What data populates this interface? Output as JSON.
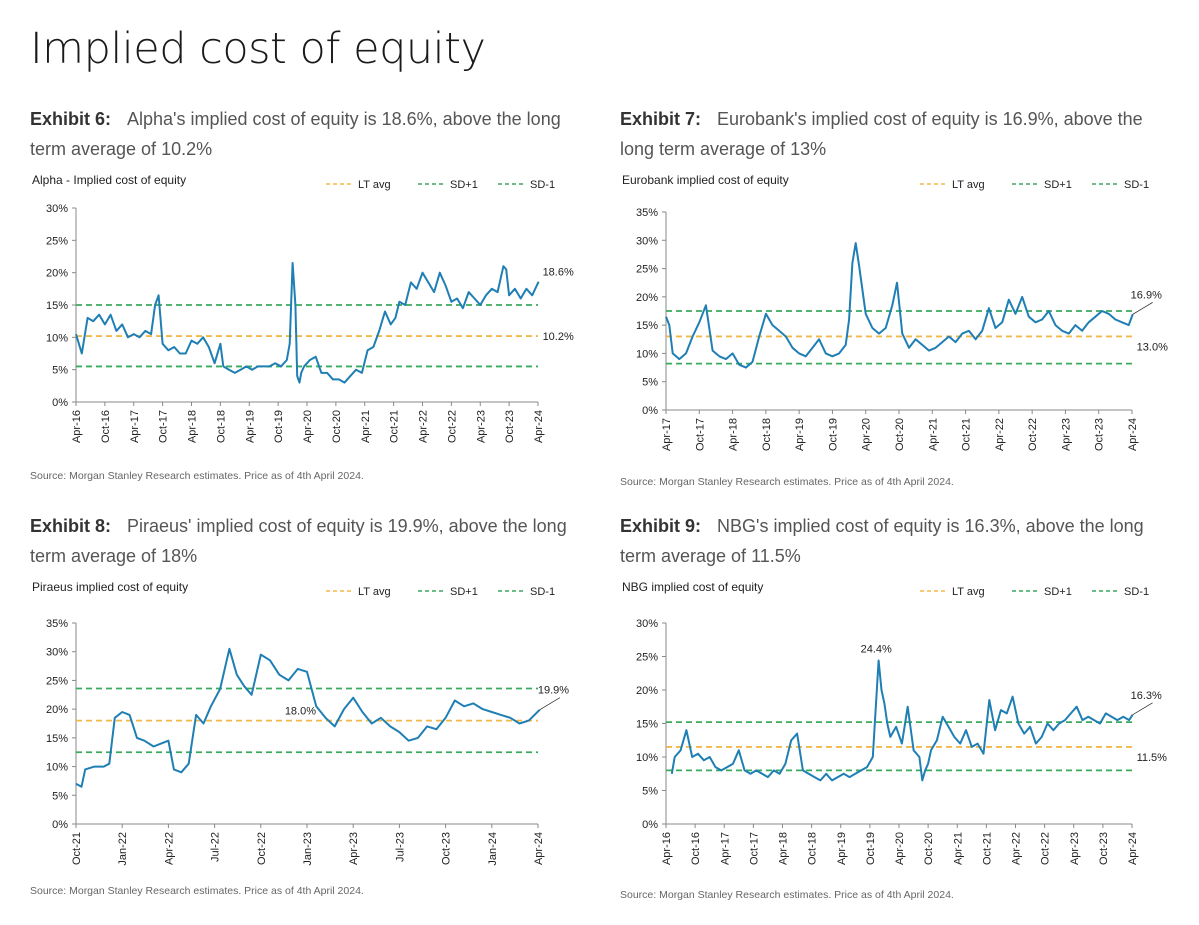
{
  "page": {
    "title": "Implied cost of equity"
  },
  "colors": {
    "line": "#1f7fb4",
    "lt_avg": "#f2b84b",
    "sd": "#3aaa5c",
    "axis": "#888888",
    "text": "#222222"
  },
  "panels": [
    {
      "exhibit": "Exhibit 6:",
      "heading": "Alpha's implied cost of equity is 18.6%, above the long term average of 10.2%",
      "source": "Source: Morgan Stanley Research estimates. Price as of 4th April 2024.",
      "chart_title": "Alpha - Implied cost of equity",
      "legend": [
        "LT avg",
        "SD+1",
        "SD-1"
      ],
      "yticks": [
        "0%",
        "5%",
        "10%",
        "15%",
        "20%",
        "25%",
        "30%"
      ],
      "xticks": [
        "Apr-16",
        "Oct-16",
        "Apr-17",
        "Oct-17",
        "Apr-18",
        "Oct-18",
        "Apr-19",
        "Oct-19",
        "Apr-20",
        "Oct-20",
        "Apr-21",
        "Oct-21",
        "Apr-22",
        "Oct-22",
        "Apr-23",
        "Oct-23",
        "Apr-24"
      ],
      "annotations": [
        {
          "text": "18.6%",
          "y": 18.6
        },
        {
          "text": "10.2%",
          "y": 10.2
        }
      ]
    },
    {
      "exhibit": "Exhibit 7:",
      "heading": "Eurobank's implied cost of equity is 16.9%, above the long term average of 13%",
      "source": "Source: Morgan Stanley Research estimates. Price as of 4th April 2024.",
      "chart_title": "Eurobank implied cost of equity",
      "legend": [
        "LT avg",
        "SD+1",
        "SD-1"
      ],
      "yticks": [
        "0%",
        "5%",
        "10%",
        "15%",
        "20%",
        "25%",
        "30%",
        "35%"
      ],
      "xticks": [
        "Apr-17",
        "Oct-17",
        "Apr-18",
        "Oct-18",
        "Apr-19",
        "Oct-19",
        "Apr-20",
        "Oct-20",
        "Apr-21",
        "Oct-21",
        "Apr-22",
        "Oct-22",
        "Apr-23",
        "Oct-23",
        "Apr-24"
      ],
      "annotations": [
        {
          "text": "16.9%",
          "y": 16.9
        },
        {
          "text": "13.0%",
          "y": 13.0
        }
      ]
    },
    {
      "exhibit": "Exhibit 8:",
      "heading": "Piraeus' implied cost of equity is 19.9%, above the long term average of 18%",
      "source": "Source: Morgan Stanley Research estimates. Price as of 4th April 2024.",
      "chart_title": "Piraeus implied cost of equity",
      "legend": [
        "LT avg",
        "SD+1",
        "SD-1"
      ],
      "yticks": [
        "0%",
        "5%",
        "10%",
        "15%",
        "20%",
        "25%",
        "30%",
        "35%"
      ],
      "xticks": [
        "Oct-21",
        "Jan-22",
        "Apr-22",
        "Jul-22",
        "Oct-22",
        "Jan-23",
        "Apr-23",
        "Jul-23",
        "Oct-23",
        "Jan-24",
        "Apr-24"
      ],
      "annotations": [
        {
          "text": "19.9%",
          "y": 19.9
        },
        {
          "text": "18.0%",
          "y": 18.0
        }
      ]
    },
    {
      "exhibit": "Exhibit 9:",
      "heading": "NBG's implied cost of equity is 16.3%, above the long term average of 11.5%",
      "source": "Source: Morgan Stanley Research estimates. Price as of 4th April 2024.",
      "chart_title": "NBG implied cost of equity",
      "legend": [
        "LT avg",
        "SD+1",
        "SD-1"
      ],
      "yticks": [
        "0%",
        "5%",
        "10%",
        "15%",
        "20%",
        "25%",
        "30%"
      ],
      "xticks": [
        "Apr-16",
        "Oct-16",
        "Apr-17",
        "Oct-17",
        "Apr-18",
        "Oct-18",
        "Apr-19",
        "Oct-19",
        "Apr-20",
        "Oct-20",
        "Apr-21",
        "Oct-21",
        "Apr-22",
        "Oct-22",
        "Apr-23",
        "Oct-23",
        "Apr-24"
      ],
      "annotations": [
        {
          "text": "24.4%",
          "y": 24.4
        },
        {
          "text": "16.3%",
          "y": 16.3
        },
        {
          "text": "11.5%",
          "y": 11.5
        }
      ]
    }
  ],
  "chart_data": [
    {
      "type": "line",
      "title": "Alpha - Implied cost of equity",
      "ylim": [
        0,
        30
      ],
      "yunit": "%",
      "x_range": [
        "Apr-16",
        "Apr-24"
      ],
      "series": [
        {
          "name": "Alpha",
          "x": [
            2016.25,
            2016.35,
            2016.45,
            2016.55,
            2016.65,
            2016.75,
            2016.85,
            2016.95,
            2017.05,
            2017.15,
            2017.25,
            2017.35,
            2017.45,
            2017.55,
            2017.62,
            2017.68,
            2017.75,
            2017.85,
            2017.95,
            2018.05,
            2018.15,
            2018.25,
            2018.35,
            2018.45,
            2018.55,
            2018.65,
            2018.75,
            2018.8,
            2018.9,
            2019.0,
            2019.1,
            2019.2,
            2019.3,
            2019.4,
            2019.5,
            2019.6,
            2019.7,
            2019.8,
            2019.9,
            2019.95,
            2020.0,
            2020.05,
            2020.08,
            2020.12,
            2020.15,
            2020.2,
            2020.3,
            2020.4,
            2020.5,
            2020.6,
            2020.7,
            2020.8,
            2020.9,
            2021.0,
            2021.1,
            2021.2,
            2021.3,
            2021.4,
            2021.5,
            2021.6,
            2021.7,
            2021.78,
            2021.85,
            2021.95,
            2022.05,
            2022.15,
            2022.25,
            2022.35,
            2022.45,
            2022.55,
            2022.65,
            2022.75,
            2022.85,
            2022.95,
            2023.05,
            2023.15,
            2023.25,
            2023.35,
            2023.45,
            2023.55,
            2023.65,
            2023.7,
            2023.75,
            2023.85,
            2023.95,
            2024.05,
            2024.15,
            2024.26
          ],
          "values": [
            10.5,
            7.5,
            13.0,
            12.5,
            13.5,
            12.0,
            13.5,
            11.0,
            12.0,
            10.0,
            10.5,
            10.0,
            11.0,
            10.5,
            15.0,
            16.5,
            9.0,
            8.0,
            8.5,
            7.5,
            7.5,
            9.5,
            9.0,
            10.0,
            8.5,
            6.0,
            9.0,
            5.5,
            5.0,
            4.5,
            5.0,
            5.5,
            5.0,
            5.5,
            5.5,
            5.5,
            6.0,
            5.5,
            6.5,
            9.0,
            21.5,
            15.0,
            4.0,
            3.0,
            4.5,
            5.5,
            6.5,
            7.0,
            4.5,
            4.5,
            3.5,
            3.5,
            3.0,
            4.0,
            5.0,
            4.5,
            8.0,
            8.5,
            11.0,
            14.0,
            12.0,
            13.0,
            15.5,
            15.0,
            18.5,
            17.5,
            20.0,
            18.5,
            17.0,
            20.0,
            18.0,
            15.5,
            16.0,
            14.5,
            17.0,
            16.0,
            15.0,
            16.5,
            17.5,
            17.0,
            21.0,
            20.5,
            16.5,
            17.5,
            16.0,
            17.5,
            16.5,
            18.6
          ]
        },
        {
          "name": "LT avg",
          "values": [
            10.2
          ]
        },
        {
          "name": "SD+1",
          "values": [
            15.0
          ]
        },
        {
          "name": "SD-1",
          "values": [
            5.5
          ]
        }
      ]
    },
    {
      "type": "line",
      "title": "Eurobank implied cost of equity",
      "ylim": [
        0,
        35
      ],
      "yunit": "%",
      "x_range": [
        "Apr-17",
        "Apr-24"
      ],
      "series": [
        {
          "name": "Eurobank",
          "x": [
            2017.25,
            2017.3,
            2017.35,
            2017.45,
            2017.55,
            2017.65,
            2017.75,
            2017.85,
            2017.95,
            2018.05,
            2018.15,
            2018.25,
            2018.35,
            2018.45,
            2018.55,
            2018.65,
            2018.75,
            2018.85,
            2018.95,
            2019.05,
            2019.15,
            2019.25,
            2019.35,
            2019.45,
            2019.55,
            2019.65,
            2019.75,
            2019.85,
            2019.95,
            2020.0,
            2020.05,
            2020.1,
            2020.15,
            2020.25,
            2020.35,
            2020.45,
            2020.55,
            2020.65,
            2020.72,
            2020.8,
            2020.9,
            2021.0,
            2021.1,
            2021.2,
            2021.3,
            2021.4,
            2021.5,
            2021.6,
            2021.7,
            2021.8,
            2021.9,
            2022.0,
            2022.1,
            2022.2,
            2022.3,
            2022.4,
            2022.5,
            2022.6,
            2022.7,
            2022.8,
            2022.9,
            2023.0,
            2023.1,
            2023.2,
            2023.3,
            2023.4,
            2023.5,
            2023.6,
            2023.7,
            2023.8,
            2023.9,
            2024.0,
            2024.1,
            2024.2,
            2024.26
          ],
          "values": [
            16.5,
            15.0,
            10.0,
            9.0,
            10.0,
            13.0,
            15.5,
            18.5,
            10.5,
            9.5,
            9.0,
            10.0,
            8.0,
            7.5,
            8.5,
            13.0,
            17.0,
            15.0,
            14.0,
            13.0,
            11.0,
            10.0,
            9.5,
            11.0,
            12.5,
            10.0,
            9.5,
            10.0,
            11.5,
            16.0,
            26.0,
            29.5,
            25.5,
            17.0,
            14.5,
            13.5,
            14.5,
            18.5,
            22.5,
            13.5,
            11.0,
            12.5,
            11.5,
            10.5,
            11.0,
            12.0,
            13.0,
            12.0,
            13.5,
            14.0,
            12.5,
            14.0,
            18.0,
            14.5,
            15.5,
            19.5,
            17.0,
            20.0,
            16.5,
            15.5,
            16.0,
            17.5,
            15.0,
            14.0,
            13.5,
            15.0,
            14.0,
            15.5,
            16.5,
            17.5,
            17.0,
            16.0,
            15.5,
            15.0,
            16.9
          ]
        },
        {
          "name": "LT avg",
          "values": [
            13.0
          ]
        },
        {
          "name": "SD+1",
          "values": [
            17.5
          ]
        },
        {
          "name": "SD-1",
          "values": [
            8.2
          ]
        }
      ]
    },
    {
      "type": "line",
      "title": "Piraeus implied cost of equity",
      "ylim": [
        0,
        35
      ],
      "yunit": "%",
      "x_range": [
        "Oct-21",
        "Apr-24"
      ],
      "series": [
        {
          "name": "Piraeus",
          "x": [
            2021.75,
            2021.78,
            2021.8,
            2021.85,
            2021.9,
            2021.93,
            2021.96,
            2022.0,
            2022.04,
            2022.08,
            2022.12,
            2022.17,
            2022.21,
            2022.25,
            2022.28,
            2022.32,
            2022.36,
            2022.4,
            2022.44,
            2022.48,
            2022.53,
            2022.58,
            2022.62,
            2022.66,
            2022.7,
            2022.75,
            2022.8,
            2022.85,
            2022.9,
            2022.95,
            2023.0,
            2023.05,
            2023.1,
            2023.15,
            2023.2,
            2023.25,
            2023.3,
            2023.35,
            2023.4,
            2023.45,
            2023.5,
            2023.55,
            2023.6,
            2023.65,
            2023.7,
            2023.75,
            2023.8,
            2023.85,
            2023.9,
            2023.95,
            2024.0,
            2024.05,
            2024.1,
            2024.15,
            2024.2,
            2024.26
          ],
          "values": [
            7.0,
            6.5,
            9.5,
            10.0,
            10.0,
            10.5,
            18.5,
            19.5,
            19.0,
            15.0,
            14.5,
            13.5,
            14.0,
            14.5,
            9.5,
            9.0,
            10.5,
            19.0,
            17.5,
            20.5,
            23.5,
            30.5,
            26.0,
            24.0,
            22.5,
            29.5,
            28.5,
            26.0,
            25.0,
            27.0,
            26.5,
            20.5,
            18.5,
            17.0,
            20.0,
            22.0,
            19.5,
            17.5,
            18.5,
            17.0,
            16.0,
            14.5,
            15.0,
            17.0,
            16.5,
            18.5,
            21.5,
            20.5,
            21.0,
            20.0,
            19.5,
            19.0,
            18.5,
            17.5,
            18.0,
            19.9
          ]
        },
        {
          "name": "LT avg",
          "values": [
            18.0
          ]
        },
        {
          "name": "SD+1",
          "values": [
            23.6
          ]
        },
        {
          "name": "SD-1",
          "values": [
            12.5
          ]
        }
      ]
    },
    {
      "type": "line",
      "title": "NBG implied cost of equity",
      "ylim": [
        0,
        30
      ],
      "yunit": "%",
      "x_range": [
        "Apr-16",
        "Apr-24"
      ],
      "series": [
        {
          "name": "NBG",
          "x": [
            2016.35,
            2016.4,
            2016.5,
            2016.6,
            2016.7,
            2016.8,
            2016.9,
            2017.0,
            2017.1,
            2017.2,
            2017.3,
            2017.4,
            2017.5,
            2017.6,
            2017.7,
            2017.8,
            2017.9,
            2018.0,
            2018.1,
            2018.2,
            2018.3,
            2018.4,
            2018.5,
            2018.6,
            2018.7,
            2018.8,
            2018.9,
            2019.0,
            2019.1,
            2019.2,
            2019.3,
            2019.4,
            2019.5,
            2019.6,
            2019.7,
            2019.8,
            2019.9,
            2019.95,
            2020.0,
            2020.05,
            2020.1,
            2020.2,
            2020.3,
            2020.4,
            2020.5,
            2020.6,
            2020.65,
            2020.7,
            2020.75,
            2020.8,
            2020.9,
            2021.0,
            2021.1,
            2021.2,
            2021.3,
            2021.4,
            2021.5,
            2021.6,
            2021.7,
            2021.8,
            2021.9,
            2022.0,
            2022.1,
            2022.2,
            2022.3,
            2022.4,
            2022.5,
            2022.6,
            2022.7,
            2022.8,
            2022.9,
            2023.0,
            2023.1,
            2023.2,
            2023.3,
            2023.4,
            2023.5,
            2023.6,
            2023.7,
            2023.8,
            2023.9,
            2024.0,
            2024.1,
            2024.2,
            2024.26
          ],
          "values": [
            7.5,
            10.0,
            11.0,
            14.0,
            10.0,
            10.5,
            9.5,
            10.0,
            8.5,
            8.0,
            8.5,
            9.0,
            11.0,
            8.0,
            7.5,
            8.0,
            7.5,
            7.0,
            8.0,
            7.5,
            9.0,
            12.5,
            13.5,
            8.0,
            7.5,
            7.0,
            6.5,
            7.5,
            6.5,
            7.0,
            7.5,
            7.0,
            7.5,
            8.0,
            8.5,
            10.0,
            24.4,
            20.0,
            18.0,
            15.0,
            13.0,
            14.5,
            12.0,
            17.5,
            11.0,
            10.0,
            6.5,
            8.0,
            9.0,
            11.0,
            12.5,
            16.0,
            14.5,
            13.0,
            12.0,
            14.0,
            11.5,
            12.0,
            10.5,
            18.5,
            14.0,
            17.0,
            16.5,
            19.0,
            15.0,
            13.5,
            14.5,
            12.0,
            13.0,
            15.0,
            14.0,
            15.0,
            15.5,
            16.5,
            17.5,
            15.5,
            16.0,
            15.5,
            15.0,
            16.5,
            16.0,
            15.5,
            16.0,
            15.5,
            16.3
          ]
        },
        {
          "name": "LT avg",
          "values": [
            11.5
          ]
        },
        {
          "name": "SD+1",
          "values": [
            15.2
          ]
        },
        {
          "name": "SD-1",
          "values": [
            8.0
          ]
        }
      ]
    }
  ]
}
